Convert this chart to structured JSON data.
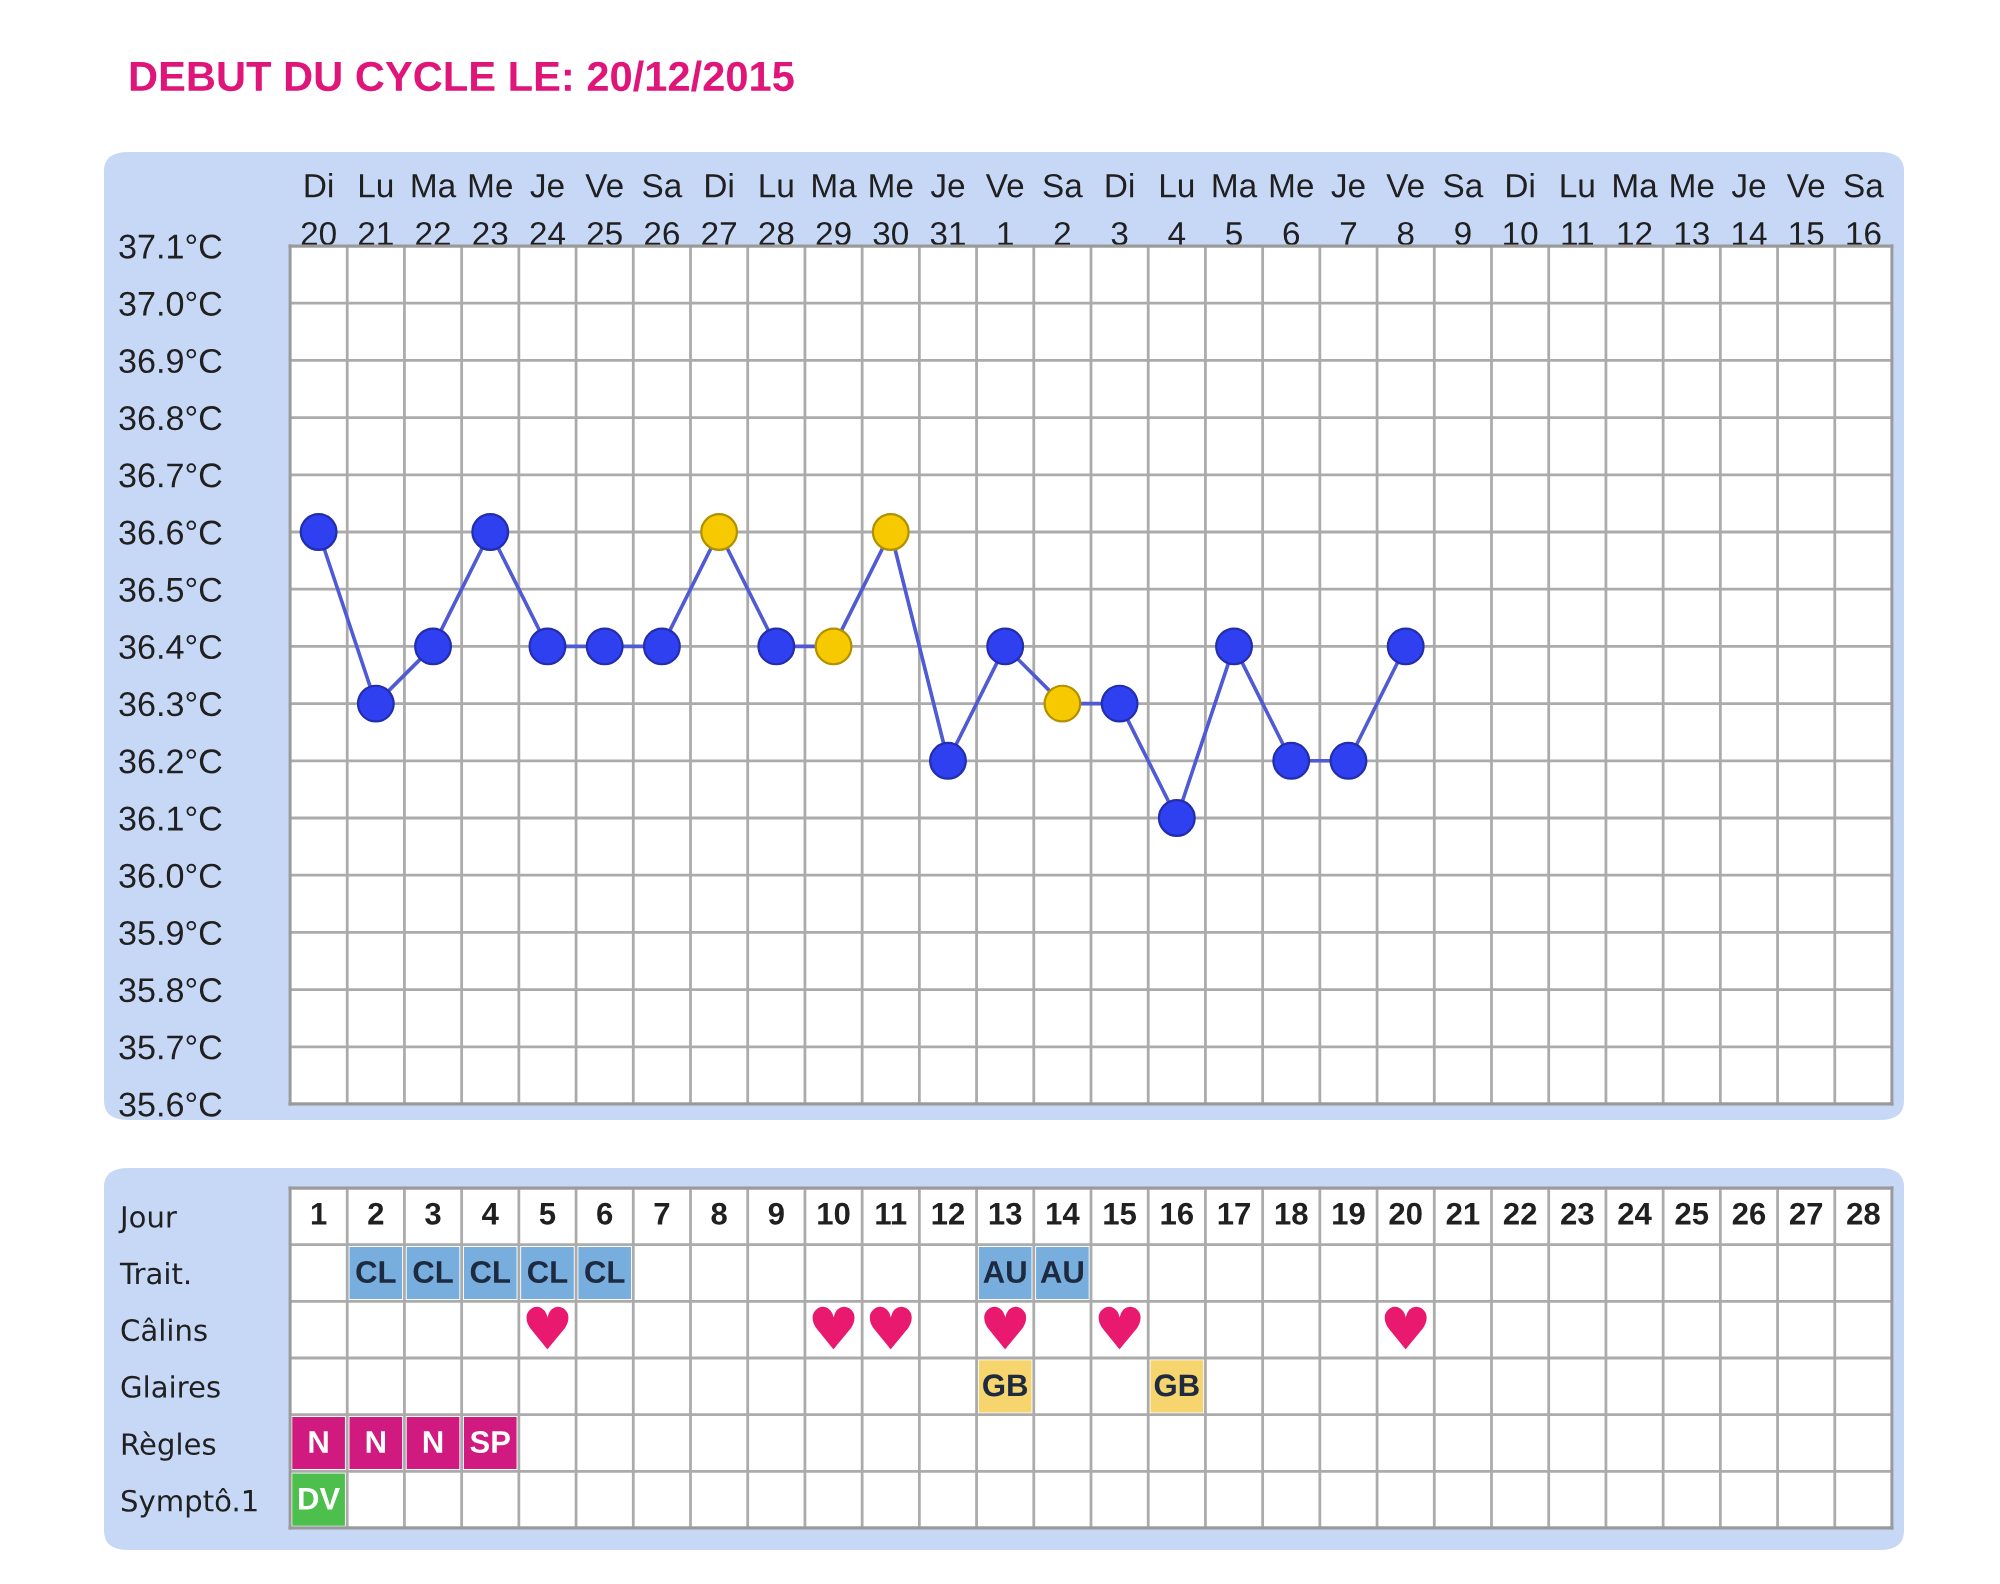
{
  "chart_data": [
    {
      "type": "line",
      "title": "DEBUT DU CYCLE LE: 20/12/2015",
      "categories": [
        "Di\n20",
        "Lu\n21",
        "Ma\n22",
        "Me\n23",
        "Je\n24",
        "Ve\n25",
        "Sa\n26",
        "Di\n27",
        "Lu\n28",
        "Ma\n29",
        "Me\n30",
        "Je\n31",
        "Ve\n1",
        "Sa\n2",
        "Di\n3",
        "Lu\n4",
        "Ma\n5",
        "Me\n6",
        "Je\n7",
        "Ve\n8",
        "Sa\n9",
        "Di\n10",
        "Lu\n11",
        "Ma\n12",
        "Me\n13",
        "Je\n14",
        "Ve\n15",
        "Sa\n16"
      ],
      "ylim": [
        35.6,
        37.1
      ],
      "yticks": [
        {
          "value": 35.6,
          "label": "35.6°C"
        },
        {
          "value": 35.7,
          "label": "35.7°C"
        },
        {
          "value": 35.8,
          "label": "35.8°C"
        },
        {
          "value": 35.9,
          "label": "35.9°C"
        },
        {
          "value": 36.0,
          "label": "36.0°C"
        },
        {
          "value": 36.1,
          "label": "36.1°C"
        },
        {
          "value": 36.2,
          "label": "36.2°C"
        },
        {
          "value": 36.3,
          "label": "36.3°C"
        },
        {
          "value": 36.4,
          "label": "36.4°C"
        },
        {
          "value": 36.5,
          "label": "36.5°C"
        },
        {
          "value": 36.6,
          "label": "36.6°C"
        },
        {
          "value": 36.7,
          "label": "36.7°C"
        },
        {
          "value": 36.8,
          "label": "36.8°C"
        },
        {
          "value": 36.9,
          "label": "36.9°C"
        },
        {
          "value": 37.0,
          "label": "37.0°C"
        },
        {
          "value": 37.1,
          "label": "37.1°C"
        }
      ],
      "grid": true,
      "marker": "circle",
      "line_style": "solid",
      "series": [
        {
          "color": "#4f5ad4",
          "values": [
            36.6,
            36.3,
            36.4,
            36.6,
            36.4,
            36.4,
            36.4,
            36.6,
            36.4,
            36.4,
            36.6,
            36.2,
            36.4,
            36.3,
            36.3,
            36.1,
            36.4,
            36.2,
            36.2,
            36.4,
            null,
            null,
            null,
            null,
            null,
            null,
            null,
            null
          ],
          "colors": [
            "#2f40f0",
            "#2f40f0",
            "#2f40f0",
            "#2f40f0",
            "#2f40f0",
            "#2f40f0",
            "#2f40f0",
            "#f7c900",
            "#2f40f0",
            "#f7c900",
            "#f7c900",
            "#2f40f0",
            "#2f40f0",
            "#f7c900",
            "#2f40f0",
            "#2f40f0",
            "#2f40f0",
            "#2f40f0",
            "#2f40f0",
            "#2f40f0",
            null,
            null,
            null,
            null,
            null,
            null,
            null,
            null
          ]
        }
      ]
    },
    {
      "type": "heatmap",
      "xlabel": "Jour",
      "categories": [
        "1",
        "2",
        "3",
        "4",
        "5",
        "6",
        "7",
        "8",
        "9",
        "10",
        "11",
        "12",
        "13",
        "14",
        "15",
        "16",
        "17",
        "18",
        "19",
        "20",
        "21",
        "22",
        "23",
        "24",
        "25",
        "26",
        "27",
        "28"
      ],
      "y_categories": [
        "Trait.",
        "Câlins",
        "Glaires",
        "Règles",
        "Symptô.1"
      ],
      "color": "#e8196f",
      "cells": [
        [
          null,
          null,
          null,
          null,
          null,
          null,
          null,
          null,
          null,
          null,
          null,
          null,
          null,
          null,
          null,
          null,
          null,
          null,
          null,
          null,
          null,
          null,
          null,
          null,
          null,
          null,
          null,
          null
        ],
        [
          null,
          null,
          null,
          null,
          null,
          null,
          null,
          null,
          null,
          null,
          null,
          null,
          null,
          null,
          null,
          null,
          null,
          null,
          null,
          null,
          null,
          null,
          null,
          null,
          null,
          null,
          null,
          null
        ],
        [
          null,
          null,
          null,
          null,
          null,
          null,
          null,
          null,
          null,
          null,
          null,
          null,
          null,
          null,
          null,
          null,
          null,
          null,
          null,
          null,
          null,
          null,
          null,
          null,
          null,
          null,
          null,
          null
        ],
        [
          null,
          null,
          null,
          null,
          null,
          null,
          null,
          null,
          null,
          null,
          null,
          null,
          null,
          null,
          null,
          null,
          null,
          null,
          null,
          null,
          null,
          null,
          null,
          null,
          null,
          null,
          null,
          null
        ],
        [
          null,
          null,
          null,
          null,
          null,
          null,
          null,
          null,
          null,
          null,
          null,
          null,
          null,
          null,
          null,
          null,
          null,
          null,
          null,
          null,
          null,
          null,
          null,
          null,
          null,
          null,
          null,
          null
        ]
      ],
      "cell_labels": [
        [
          null,
          "CL",
          "CL",
          "CL",
          "CL",
          "CL",
          null,
          null,
          null,
          null,
          null,
          null,
          "AU",
          "AU",
          null,
          null,
          null,
          null,
          null,
          null,
          null,
          null,
          null,
          null,
          null,
          null,
          null,
          null
        ],
        [
          null,
          null,
          null,
          null,
          "♥",
          null,
          null,
          null,
          null,
          "♥",
          "♥",
          null,
          "♥",
          null,
          "♥",
          null,
          null,
          null,
          null,
          "♥",
          null,
          null,
          null,
          null,
          null,
          null,
          null,
          null
        ],
        [
          null,
          null,
          null,
          null,
          null,
          null,
          null,
          null,
          null,
          null,
          null,
          null,
          "GB",
          null,
          null,
          "GB",
          null,
          null,
          null,
          null,
          null,
          null,
          null,
          null,
          null,
          null,
          null,
          null
        ],
        [
          "N",
          "N",
          "N",
          "SP",
          null,
          null,
          null,
          null,
          null,
          null,
          null,
          null,
          null,
          null,
          null,
          null,
          null,
          null,
          null,
          null,
          null,
          null,
          null,
          null,
          null,
          null,
          null,
          null
        ],
        [
          "DV",
          null,
          null,
          null,
          null,
          null,
          null,
          null,
          null,
          null,
          null,
          null,
          null,
          null,
          null,
          null,
          null,
          null,
          null,
          null,
          null,
          null,
          null,
          null,
          null,
          null,
          null,
          null
        ]
      ],
      "colors": [
        [
          null,
          "#78aedd",
          "#78aedd",
          "#78aedd",
          "#78aedd",
          "#78aedd",
          null,
          null,
          null,
          null,
          null,
          null,
          "#78aedd",
          "#78aedd",
          null,
          null,
          null,
          null,
          null,
          null,
          null,
          null,
          null,
          null,
          null,
          null,
          null,
          null
        ],
        [
          null,
          null,
          null,
          null,
          null,
          null,
          null,
          null,
          null,
          null,
          null,
          null,
          null,
          null,
          null,
          null,
          null,
          null,
          null,
          null,
          null,
          null,
          null,
          null,
          null,
          null,
          null,
          null
        ],
        [
          null,
          null,
          null,
          null,
          null,
          null,
          null,
          null,
          null,
          null,
          null,
          null,
          "#f6d46e",
          null,
          null,
          "#f6d46e",
          null,
          null,
          null,
          null,
          null,
          null,
          null,
          null,
          null,
          null,
          null,
          null
        ],
        [
          "#d01a80",
          "#d01a80",
          "#d01a80",
          "#d01a80",
          null,
          null,
          null,
          null,
          null,
          null,
          null,
          null,
          null,
          null,
          null,
          null,
          null,
          null,
          null,
          null,
          null,
          null,
          null,
          null,
          null,
          null,
          null,
          null
        ],
        [
          "#4cbf4c",
          null,
          null,
          null,
          null,
          null,
          null,
          null,
          null,
          null,
          null,
          null,
          null,
          null,
          null,
          null,
          null,
          null,
          null,
          null,
          null,
          null,
          null,
          null,
          null,
          null,
          null,
          null
        ]
      ]
    }
  ]
}
